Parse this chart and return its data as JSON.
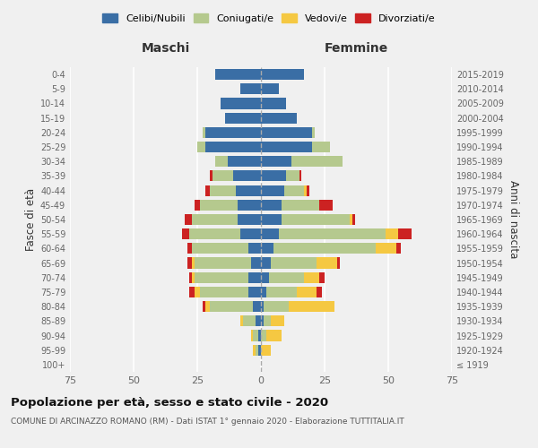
{
  "age_groups": [
    "100+",
    "95-99",
    "90-94",
    "85-89",
    "80-84",
    "75-79",
    "70-74",
    "65-69",
    "60-64",
    "55-59",
    "50-54",
    "45-49",
    "40-44",
    "35-39",
    "30-34",
    "25-29",
    "20-24",
    "15-19",
    "10-14",
    "5-9",
    "0-4"
  ],
  "birth_years": [
    "≤ 1919",
    "1920-1924",
    "1925-1929",
    "1930-1934",
    "1935-1939",
    "1940-1944",
    "1945-1949",
    "1950-1954",
    "1955-1959",
    "1960-1964",
    "1965-1969",
    "1970-1974",
    "1975-1979",
    "1980-1984",
    "1985-1989",
    "1990-1994",
    "1995-1999",
    "2000-2004",
    "2005-2009",
    "2010-2014",
    "2015-2019"
  ],
  "maschi": {
    "celibi": [
      0,
      1,
      1,
      2,
      3,
      5,
      5,
      4,
      5,
      8,
      9,
      9,
      10,
      11,
      13,
      22,
      22,
      14,
      16,
      8,
      18
    ],
    "coniugati": [
      0,
      1,
      2,
      5,
      17,
      19,
      21,
      22,
      22,
      20,
      18,
      15,
      10,
      8,
      5,
      3,
      1,
      0,
      0,
      0,
      0
    ],
    "vedovi": [
      0,
      1,
      1,
      1,
      2,
      2,
      1,
      1,
      0,
      0,
      0,
      0,
      0,
      0,
      0,
      0,
      0,
      0,
      0,
      0,
      0
    ],
    "divorziati": [
      0,
      0,
      0,
      0,
      1,
      2,
      1,
      2,
      2,
      3,
      3,
      2,
      2,
      1,
      0,
      0,
      0,
      0,
      0,
      0,
      0
    ]
  },
  "femmine": {
    "nubili": [
      0,
      0,
      0,
      1,
      1,
      2,
      3,
      4,
      5,
      7,
      8,
      8,
      9,
      10,
      12,
      20,
      20,
      14,
      10,
      7,
      17
    ],
    "coniugate": [
      0,
      0,
      2,
      3,
      10,
      12,
      14,
      18,
      40,
      42,
      27,
      15,
      8,
      5,
      20,
      7,
      1,
      0,
      0,
      0,
      0
    ],
    "vedove": [
      0,
      4,
      6,
      5,
      18,
      8,
      6,
      8,
      8,
      5,
      1,
      0,
      1,
      0,
      0,
      0,
      0,
      0,
      0,
      0,
      0
    ],
    "divorziate": [
      0,
      0,
      0,
      0,
      0,
      2,
      2,
      1,
      2,
      5,
      1,
      5,
      1,
      1,
      0,
      0,
      0,
      0,
      0,
      0,
      0
    ]
  },
  "colors": {
    "celibi": "#3a6ea5",
    "coniugati": "#b5c98e",
    "vedovi": "#f5c842",
    "divorziati": "#cc2222"
  },
  "xlim": 75,
  "title": "Popolazione per età, sesso e stato civile - 2020",
  "subtitle": "COMUNE DI ARCINAZZO ROMANO (RM) - Dati ISTAT 1° gennaio 2020 - Elaborazione TUTTITALIA.IT",
  "xlabel_left": "Maschi",
  "xlabel_right": "Femmine",
  "ylabel_left": "Fasce di età",
  "ylabel_right": "Anni di nascita",
  "bg_color": "#f0f0f0",
  "legend_labels": [
    "Celibi/Nubili",
    "Coniugati/e",
    "Vedovi/e",
    "Divorziati/e"
  ]
}
